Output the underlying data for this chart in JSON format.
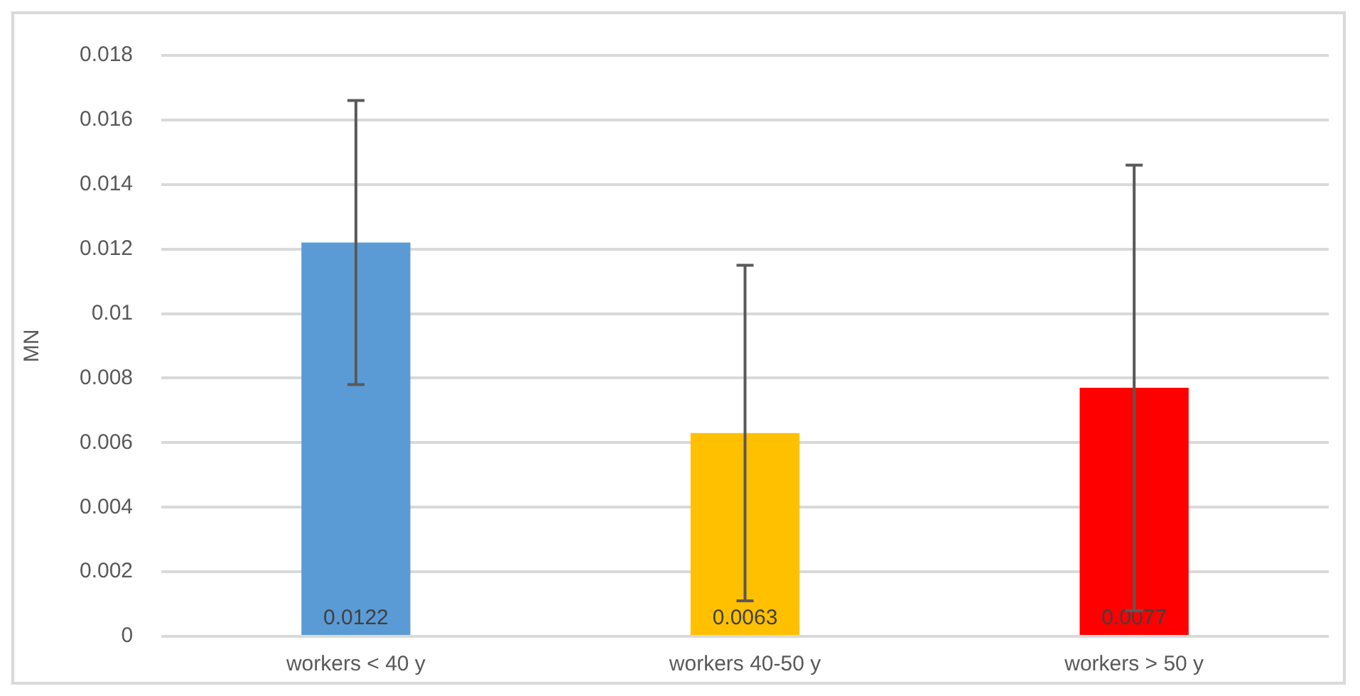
{
  "chart_data": {
    "type": "bar",
    "ylabel": "MN",
    "categories": [
      "workers < 40 y",
      "workers 40-50 y",
      "workers > 50 y"
    ],
    "values": [
      0.0122,
      0.0063,
      0.0077
    ],
    "colors": [
      "#5b9bd5",
      "#ffc000",
      "#ff0000"
    ],
    "errors": [
      0.0044,
      0.0052,
      0.0069
    ],
    "ylim": [
      0,
      0.018
    ],
    "yticks": [
      0,
      0.002,
      0.004,
      0.006,
      0.008,
      0.01,
      0.012,
      0.014,
      0.016,
      0.018
    ],
    "grid": "y",
    "legend": false,
    "data_labels": true
  }
}
